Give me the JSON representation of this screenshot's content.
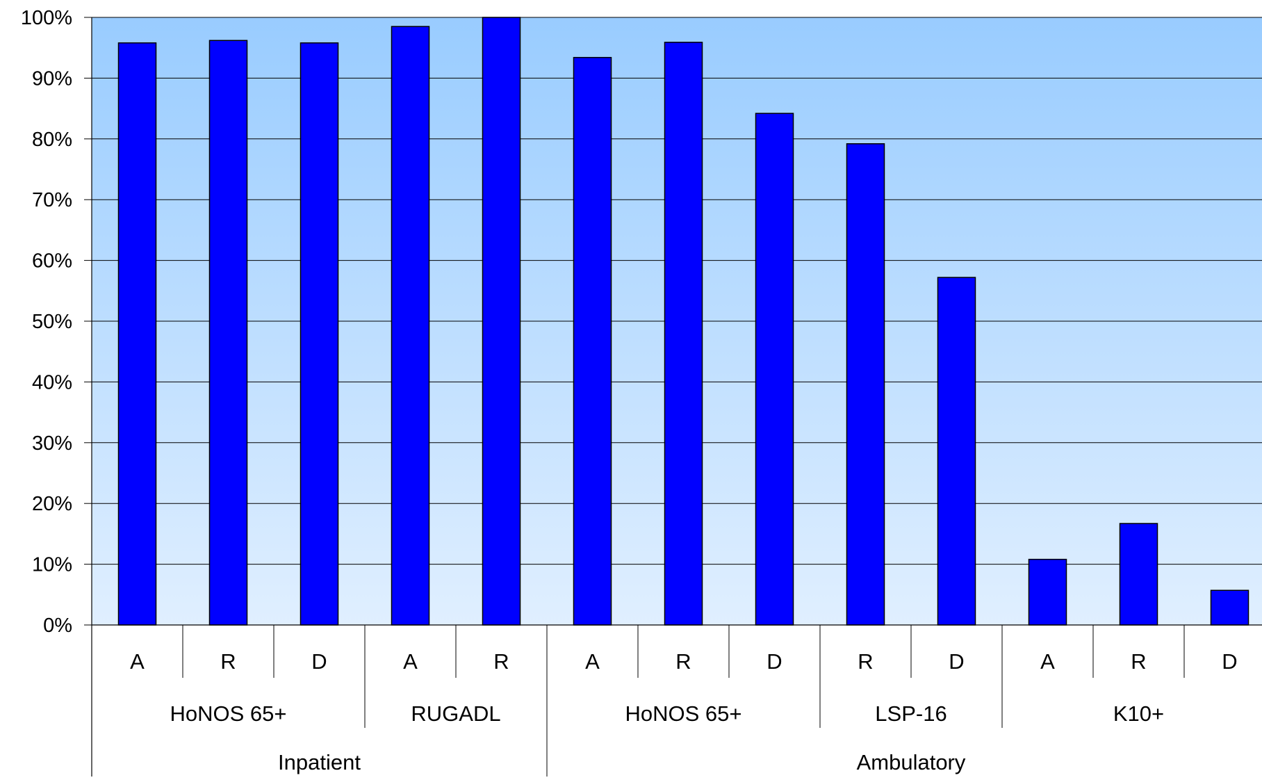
{
  "chart_data": {
    "type": "bar",
    "title": "",
    "xlabel": "",
    "ylabel": "",
    "ylim": [
      0,
      100
    ],
    "yticks": [
      0,
      10,
      20,
      30,
      40,
      50,
      60,
      70,
      80,
      90,
      100
    ],
    "ytick_labels": [
      "0%",
      "10%",
      "20%",
      "30%",
      "40%",
      "50%",
      "60%",
      "70%",
      "80%",
      "90%",
      "100%"
    ],
    "grid": true,
    "legend": "none",
    "categories": [
      "A",
      "R",
      "D",
      "A",
      "R",
      "A",
      "R",
      "D",
      "R",
      "D",
      "A",
      "R",
      "D"
    ],
    "values": [
      95.8,
      96.2,
      95.8,
      98.5,
      100.0,
      93.4,
      95.9,
      84.2,
      79.2,
      57.2,
      10.8,
      16.7,
      5.7
    ],
    "groups_level1": [
      {
        "label": "HoNOS 65+",
        "count": 3
      },
      {
        "label": "RUGADL",
        "count": 2
      },
      {
        "label": "HoNOS 65+",
        "count": 3
      },
      {
        "label": "LSP-16",
        "count": 2
      },
      {
        "label": "K10+",
        "count": 3
      }
    ],
    "groups_level2": [
      {
        "label": "Inpatient",
        "count": 5
      },
      {
        "label": "Ambulatory",
        "count": 8
      }
    ],
    "colors": {
      "bar_fill": "#0000ff",
      "bar_stroke": "#000000",
      "plot_bg_top": "#99ccff",
      "plot_bg_bottom": "#e0efff",
      "gridline": "#000000"
    }
  }
}
